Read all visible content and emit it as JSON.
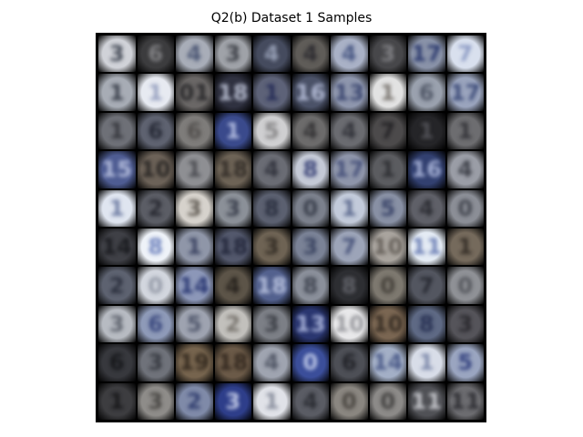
{
  "figure": {
    "title": "Q2(b) Dataset 1 Samples",
    "grid_rows": 10,
    "grid_cols": 10
  },
  "samples": [
    {
      "bg": "#d0d2d8",
      "fg": "#2c3340",
      "glyph": "3"
    },
    {
      "bg": "#3c3c3e",
      "fg": "#8f8f92",
      "glyph": "6"
    },
    {
      "bg": "#a8adb8",
      "fg": "#3e4a6a",
      "glyph": "4"
    },
    {
      "bg": "#9fa2a8",
      "fg": "#2c2f36",
      "glyph": "3"
    },
    {
      "bg": "#454b5e",
      "fg": "#a4adc4",
      "glyph": "4"
    },
    {
      "bg": "#5f5c58",
      "fg": "#26252b",
      "glyph": "4"
    },
    {
      "bg": "#a9b1c6",
      "fg": "#3b4b7a",
      "glyph": "4"
    },
    {
      "bg": "#47474a",
      "fg": "#8b8b8f",
      "glyph": "3"
    },
    {
      "bg": "#8992a8",
      "fg": "#1f2e66",
      "glyph": "17"
    },
    {
      "bg": "#d9e0ee",
      "fg": "#7e8ebc",
      "glyph": "7"
    },
    {
      "bg": "#a7acb5",
      "fg": "#2a2f3b",
      "glyph": "1"
    },
    {
      "bg": "#e7eaf1",
      "fg": "#8a95b8",
      "glyph": "1"
    },
    {
      "bg": "#6a6766",
      "fg": "#1f1f22",
      "glyph": "01"
    },
    {
      "bg": "#2f3140",
      "fg": "#c9cfe2",
      "glyph": "18"
    },
    {
      "bg": "#5d6278",
      "fg": "#1d2452",
      "glyph": "1"
    },
    {
      "bg": "#4b5268",
      "fg": "#c3cbe6",
      "glyph": "16"
    },
    {
      "bg": "#8e96ad",
      "fg": "#2e3a66",
      "glyph": "13"
    },
    {
      "bg": "#e2e2e2",
      "fg": "#6c6660",
      "glyph": "1"
    },
    {
      "bg": "#9aa1ae",
      "fg": "#434a5a",
      "glyph": "6"
    },
    {
      "bg": "#9aa4bd",
      "fg": "#2f3e6e",
      "glyph": "17"
    },
    {
      "bg": "#6e7077",
      "fg": "#2e2f35",
      "glyph": "1"
    },
    {
      "bg": "#5e6270",
      "fg": "#1c1f2b",
      "glyph": "6"
    },
    {
      "bg": "#7e7c7a",
      "fg": "#4b4846",
      "glyph": "6"
    },
    {
      "bg": "#3a4a8c",
      "fg": "#c6cfee",
      "glyph": "1"
    },
    {
      "bg": "#cfcfd1",
      "fg": "#7b7a7b",
      "glyph": "5"
    },
    {
      "bg": "#6c6b6b",
      "fg": "#2e2d2f",
      "glyph": "4"
    },
    {
      "bg": "#6a6b70",
      "fg": "#2b2c33",
      "glyph": "4"
    },
    {
      "bg": "#4c4a4b",
      "fg": "#1d1c1f",
      "glyph": "7"
    },
    {
      "bg": "#252528",
      "fg": "#5a5a60",
      "glyph": "1"
    },
    {
      "bg": "#6d6d70",
      "fg": "#2b2b30",
      "glyph": "1"
    },
    {
      "bg": "#4e5c92",
      "fg": "#c2cae6",
      "glyph": "15"
    },
    {
      "bg": "#6c6258",
      "fg": "#211f1e",
      "glyph": "10"
    },
    {
      "bg": "#8e8f93",
      "fg": "#404147",
      "glyph": "1"
    },
    {
      "bg": "#6d6356",
      "fg": "#2b2622",
      "glyph": "18"
    },
    {
      "bg": "#6a6c74",
      "fg": "#2a2c36",
      "glyph": "4"
    },
    {
      "bg": "#c4c9d6",
      "fg": "#27306a",
      "glyph": "8"
    },
    {
      "bg": "#8e95aa",
      "fg": "#3b4672",
      "glyph": "17"
    },
    {
      "bg": "#5b5c60",
      "fg": "#27282c",
      "glyph": "1"
    },
    {
      "bg": "#324070",
      "fg": "#b9c3e6",
      "glyph": "16"
    },
    {
      "bg": "#9a9da6",
      "fg": "#2f323a",
      "glyph": "4"
    },
    {
      "bg": "#dfe5f0",
      "fg": "#5c6b96",
      "glyph": "1"
    },
    {
      "bg": "#5b5d65",
      "fg": "#1f2028",
      "glyph": "2"
    },
    {
      "bg": "#d6d2cc",
      "fg": "#4e4840",
      "glyph": "3"
    },
    {
      "bg": "#8b9098",
      "fg": "#2d3240",
      "glyph": "3"
    },
    {
      "bg": "#5b6070",
      "fg": "#232838",
      "glyph": "8"
    },
    {
      "bg": "#7b808c",
      "fg": "#2e3340",
      "glyph": "0"
    },
    {
      "bg": "#c2cada",
      "fg": "#4c5a82",
      "glyph": "1"
    },
    {
      "bg": "#8890a4",
      "fg": "#2e3960",
      "glyph": "5"
    },
    {
      "bg": "#5f6068",
      "fg": "#25262c",
      "glyph": "4"
    },
    {
      "bg": "#8b8e96",
      "fg": "#383b44",
      "glyph": "0"
    },
    {
      "bg": "#3f4046",
      "fg": "#15161a",
      "glyph": "14"
    },
    {
      "bg": "#eef2f8",
      "fg": "#5e74b6",
      "glyph": "8"
    },
    {
      "bg": "#8f96a8",
      "fg": "#2e3656",
      "glyph": "1"
    },
    {
      "bg": "#53586c",
      "fg": "#1c2034",
      "glyph": "18"
    },
    {
      "bg": "#6e6354",
      "fg": "#2a241d",
      "glyph": "3"
    },
    {
      "bg": "#7a8296",
      "fg": "#303a58",
      "glyph": "3"
    },
    {
      "bg": "#9ca4b8",
      "fg": "#3a4670",
      "glyph": "7"
    },
    {
      "bg": "#a9a49e",
      "fg": "#5a544e",
      "glyph": "10"
    },
    {
      "bg": "#e4ebf4",
      "fg": "#5c70ac",
      "glyph": "11"
    },
    {
      "bg": "#756a5c",
      "fg": "#2a241e",
      "glyph": "1"
    },
    {
      "bg": "#5d6270",
      "fg": "#242836",
      "glyph": "2"
    },
    {
      "bg": "#d2d6de",
      "fg": "#8a909e",
      "glyph": "0"
    },
    {
      "bg": "#8c97b8",
      "fg": "#1e2c6a",
      "glyph": "14"
    },
    {
      "bg": "#5c5448",
      "fg": "#1f1b17",
      "glyph": "4"
    },
    {
      "bg": "#53618e",
      "fg": "#c6cfe9",
      "glyph": "18"
    },
    {
      "bg": "#8a8f9a",
      "fg": "#353a46",
      "glyph": "8"
    },
    {
      "bg": "#2d2e32",
      "fg": "#6a6b72",
      "glyph": "8"
    },
    {
      "bg": "#7d786f",
      "fg": "#3b3731",
      "glyph": "0"
    },
    {
      "bg": "#535660",
      "fg": "#20222a",
      "glyph": "7"
    },
    {
      "bg": "#8f9196",
      "fg": "#4a4c52",
      "glyph": "0"
    },
    {
      "bg": "#b7bbc2",
      "fg": "#4e535e",
      "glyph": "3"
    },
    {
      "bg": "#8e9ab8",
      "fg": "#2c3a74",
      "glyph": "6"
    },
    {
      "bg": "#9ea3b0",
      "fg": "#434a60",
      "glyph": "5"
    },
    {
      "bg": "#c2c0bc",
      "fg": "#6b6660",
      "glyph": "2"
    },
    {
      "bg": "#7c7f86",
      "fg": "#30333a",
      "glyph": "3"
    },
    {
      "bg": "#2a3670",
      "fg": "#bcc6ea",
      "glyph": "13"
    },
    {
      "bg": "#e8e8ea",
      "fg": "#8a8b90",
      "glyph": "10"
    },
    {
      "bg": "#7a6652",
      "fg": "#2c241c",
      "glyph": "10"
    },
    {
      "bg": "#5e6984",
      "fg": "#1e274a",
      "glyph": "8"
    },
    {
      "bg": "#55545a",
      "fg": "#222126",
      "glyph": "3"
    },
    {
      "bg": "#37383d",
      "fg": "#111215",
      "glyph": "6"
    },
    {
      "bg": "#6f727a",
      "fg": "#2c2f36",
      "glyph": "3"
    },
    {
      "bg": "#76644e",
      "fg": "#2a2118",
      "glyph": "19"
    },
    {
      "bg": "#6b5a48",
      "fg": "#2b2119",
      "glyph": "18"
    },
    {
      "bg": "#9fa4b0",
      "fg": "#454b5a",
      "glyph": "4"
    },
    {
      "bg": "#3b4e9a",
      "fg": "#d2dbf4",
      "glyph": "0"
    },
    {
      "bg": "#4d4f56",
      "fg": "#1b1c21",
      "glyph": "6"
    },
    {
      "bg": "#a3afc6",
      "fg": "#3f4f80",
      "glyph": "14"
    },
    {
      "bg": "#d8dde8",
      "fg": "#6e7ba0",
      "glyph": "1"
    },
    {
      "bg": "#9aa5c0",
      "fg": "#233274",
      "glyph": "5"
    },
    {
      "bg": "#3d3d40",
      "fg": "#121214",
      "glyph": "1"
    },
    {
      "bg": "#8e8c89",
      "fg": "#3b3936",
      "glyph": "3"
    },
    {
      "bg": "#7f8aa8",
      "fg": "#263366",
      "glyph": "2"
    },
    {
      "bg": "#2e3e8a",
      "fg": "#dbe2f6",
      "glyph": "3"
    },
    {
      "bg": "#e0e2e8",
      "fg": "#7a8090",
      "glyph": "1"
    },
    {
      "bg": "#5a5c64",
      "fg": "#24262c",
      "glyph": "4"
    },
    {
      "bg": "#8a8680",
      "fg": "#3e3a35",
      "glyph": "0"
    },
    {
      "bg": "#8c8a88",
      "fg": "#363534",
      "glyph": "0"
    },
    {
      "bg": "#505156",
      "fg": "#dadbe0",
      "glyph": "11"
    },
    {
      "bg": "#6c6c70",
      "fg": "#25252a",
      "glyph": "11"
    }
  ]
}
